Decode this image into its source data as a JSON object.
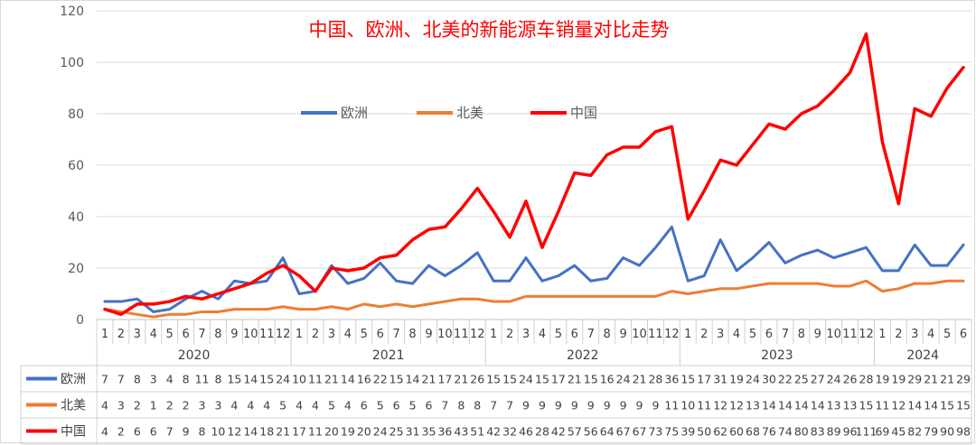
{
  "chart_data": {
    "type": "line",
    "title": "中国、欧洲、北美的新能源车销量对比走势",
    "ylim": [
      0,
      120
    ],
    "yticks": [
      0,
      20,
      40,
      60,
      80,
      100,
      120
    ],
    "grid": true,
    "legend_position": "upper-center",
    "month_labels": [
      "1",
      "2",
      "3",
      "4",
      "5",
      "6",
      "7",
      "8",
      "9",
      "10",
      "11",
      "12",
      "1",
      "2",
      "3",
      "4",
      "5",
      "6",
      "7",
      "8",
      "9",
      "10",
      "11",
      "12",
      "1",
      "2",
      "3",
      "4",
      "5",
      "6",
      "7",
      "8",
      "9",
      "10",
      "11",
      "12",
      "1",
      "2",
      "3",
      "4",
      "5",
      "6",
      "7",
      "8",
      "9",
      "10",
      "11",
      "12",
      "1",
      "2",
      "3",
      "4",
      "5",
      "6"
    ],
    "years": [
      {
        "label": "2020",
        "months": 12
      },
      {
        "label": "2021",
        "months": 12
      },
      {
        "label": "2022",
        "months": 12
      },
      {
        "label": "2023",
        "months": 12
      },
      {
        "label": "2024",
        "months": 6
      }
    ],
    "series": [
      {
        "name": "欧洲",
        "color": "#4472c4",
        "values": [
          7,
          7,
          8,
          3,
          4,
          8,
          11,
          8,
          15,
          14,
          15,
          24,
          10,
          11,
          21,
          14,
          16,
          22,
          15,
          14,
          21,
          17,
          21,
          26,
          15,
          15,
          24,
          15,
          17,
          21,
          15,
          16,
          24,
          21,
          28,
          36,
          15,
          17,
          31,
          19,
          24,
          30,
          22,
          25,
          27,
          24,
          26,
          28,
          19,
          19,
          29,
          21,
          21,
          29
        ]
      },
      {
        "name": "北美",
        "color": "#ed7d31",
        "values": [
          4,
          3,
          2,
          1,
          2,
          2,
          3,
          3,
          4,
          4,
          4,
          5,
          4,
          4,
          5,
          4,
          6,
          5,
          6,
          5,
          6,
          7,
          8,
          8,
          7,
          7,
          9,
          9,
          9,
          9,
          9,
          9,
          9,
          9,
          9,
          11,
          10,
          11,
          12,
          12,
          13,
          14,
          14,
          14,
          14,
          13,
          13,
          15,
          11,
          12,
          14,
          14,
          15,
          15
        ]
      },
      {
        "name": "中国",
        "color": "#ff0000",
        "values": [
          4,
          2,
          6,
          6,
          7,
          9,
          8,
          10,
          12,
          14,
          18,
          21,
          17,
          11,
          20,
          19,
          20,
          24,
          25,
          31,
          35,
          36,
          43,
          51,
          42,
          32,
          46,
          28,
          42,
          57,
          56,
          64,
          67,
          67,
          73,
          75,
          39,
          50,
          62,
          60,
          68,
          76,
          74,
          80,
          83,
          89,
          96,
          111,
          69,
          45,
          82,
          79,
          90,
          98
        ]
      }
    ],
    "data_table": {
      "rows": [
        {
          "name": "欧洲",
          "cells": [
            "7",
            "7",
            "8",
            "3",
            "4",
            "8",
            "11",
            "8",
            "15",
            "14",
            "15",
            "24",
            "10",
            "11",
            "21",
            "14",
            "16",
            "22",
            "15",
            "14",
            "21",
            "17",
            "21",
            "26",
            "15",
            "15",
            "24",
            "15",
            "17",
            "21",
            "15",
            "16",
            "24",
            "21",
            "28",
            "36",
            "15",
            "17",
            "31",
            "19",
            "24",
            "30",
            "22",
            "25",
            "27",
            "24",
            "26",
            "28",
            "19",
            "19",
            "29",
            "21",
            "21",
            "29"
          ]
        },
        {
          "name": "北美",
          "cells": [
            "4",
            "3",
            "2",
            "1",
            "2",
            "2",
            "3",
            "3",
            "4",
            "4",
            "4",
            "5",
            "4",
            "4",
            "5",
            "4",
            "6",
            "5",
            "6",
            "5",
            "6",
            "7",
            "8",
            "8",
            "7",
            "7",
            "9",
            "9",
            "9",
            "9",
            "9",
            "9",
            "9",
            "9",
            "9",
            "11",
            "10",
            "11",
            "12",
            "12",
            "13",
            "14",
            "14",
            "14",
            "14",
            "13",
            "13",
            "15",
            "11",
            "12",
            "14",
            "14",
            "15",
            "15"
          ]
        },
        {
          "name": "中国",
          "cells": [
            "4",
            "2",
            "6",
            "6",
            "7",
            "9",
            "8",
            "10",
            "12",
            "14",
            "18",
            "21",
            "17",
            "11",
            "20",
            "19",
            "20",
            "24",
            "25",
            "31",
            "35",
            "36",
            "43",
            "51",
            "42",
            "32",
            "46",
            "28",
            "42",
            "57",
            "56",
            "64",
            "67",
            "67",
            "73",
            "75",
            "39",
            "50",
            "62",
            "60",
            "68",
            "76",
            "74",
            "80",
            "83",
            "89",
            "96",
            "111",
            "69",
            "45",
            "82",
            "79",
            "90",
            "98"
          ]
        }
      ]
    }
  }
}
